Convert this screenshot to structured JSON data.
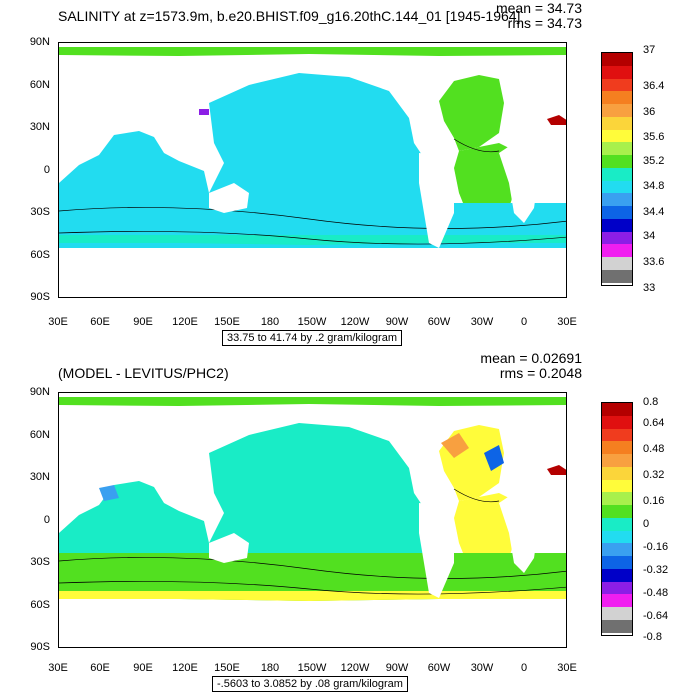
{
  "top": {
    "title": "SALINITY at z=1573.9m, b.e20.BHIST.f09_g16.20thC.144_01 [1945-1964]",
    "mean": "mean = 34.73",
    "rms": "rms = 34.73",
    "range_label": "33.75 to 41.74 by .2 gram/kilogram",
    "lat_ticks": [
      "90N",
      "60N",
      "30N",
      "0",
      "30S",
      "60S",
      "90S"
    ],
    "lon_ticks": [
      "30E",
      "60E",
      "90E",
      "120E",
      "150E",
      "180",
      "150W",
      "120W",
      "90W",
      "60W",
      "30W",
      "0",
      "30E"
    ],
    "colorbar": {
      "colors": [
        "#b40000",
        "#e01010",
        "#f03c1e",
        "#f57f20",
        "#f8a040",
        "#fbd53a",
        "#fffc3a",
        "#a8f04c",
        "#52e020",
        "#19ecc6",
        "#22dcf0",
        "#3aa0f0",
        "#0d64e6",
        "#0000c8",
        "#8c1ee6",
        "#f01ef0",
        "#d2d2d2",
        "#707070"
      ],
      "labels": [
        "37",
        "36.4",
        "36",
        "35.6",
        "35.2",
        "34.8",
        "34.4",
        "34",
        "33.6",
        "33"
      ]
    }
  },
  "bottom": {
    "title": "(MODEL - LEVITUS/PHC2)",
    "mean": "mean = 0.02691",
    "rms": "rms = 0.2048",
    "range_label": "-.5603 to 3.0852 by .08 gram/kilogram",
    "lat_ticks": [
      "90N",
      "60N",
      "30N",
      "0",
      "30S",
      "60S",
      "90S"
    ],
    "lon_ticks": [
      "30E",
      "60E",
      "90E",
      "120E",
      "150E",
      "180",
      "150W",
      "120W",
      "90W",
      "60W",
      "30W",
      "0",
      "30E"
    ],
    "colorbar": {
      "colors": [
        "#b40000",
        "#e01010",
        "#f03c1e",
        "#f57f20",
        "#f8a040",
        "#fbd53a",
        "#fffc3a",
        "#a8f04c",
        "#52e020",
        "#19ecc6",
        "#22dcf0",
        "#3aa0f0",
        "#0d64e6",
        "#0000c8",
        "#8c1ee6",
        "#f01ef0",
        "#d2d2d2",
        "#707070"
      ],
      "labels": [
        "0.8",
        "0.64",
        "0.48",
        "0.32",
        "0.16",
        "0",
        "-0.16",
        "-0.32",
        "-0.48",
        "-0.64",
        "-0.8"
      ]
    }
  }
}
